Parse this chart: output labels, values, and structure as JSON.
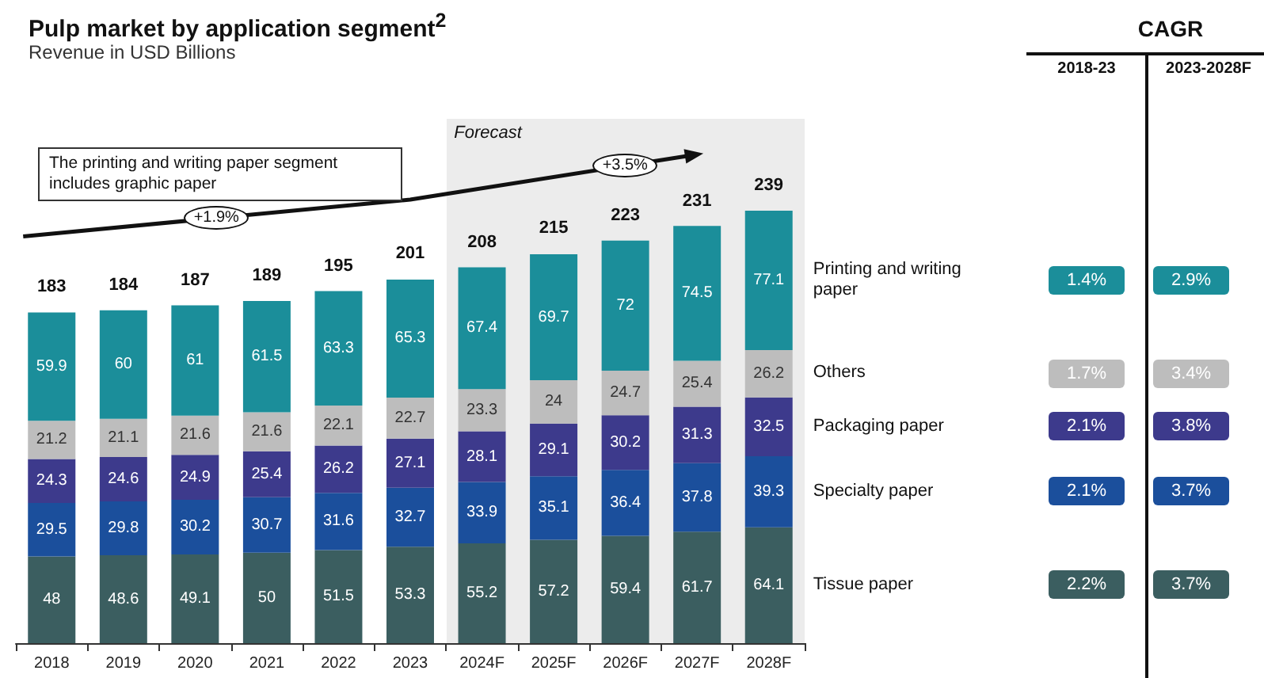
{
  "chart_data": {
    "type": "bar",
    "title": "Pulp market by application segment$^{2}$",
    "subtitle": "Revenue in USD Billions",
    "categories": [
      "2018",
      "2019",
      "2020",
      "2021",
      "2022",
      "2023",
      "2024F",
      "2025F",
      "2026F",
      "2027F",
      "2028F"
    ],
    "stacked": true,
    "data_labels": true,
    "tick_labels": "x",
    "legend": false,
    "ylim": [
      0,
      290
    ],
    "series": [
      {
        "name": "Tissue paper",
        "color": "#3b5e60",
        "values": [
          48,
          48.6,
          49.1,
          50,
          51.5,
          53.3,
          55.2,
          57.2,
          59.4,
          61.7,
          64.1
        ]
      },
      {
        "name": "Specialty paper",
        "color": "#1b4f9c",
        "values": [
          29.5,
          29.8,
          30.2,
          30.7,
          31.6,
          32.7,
          33.9,
          35.1,
          36.4,
          37.8,
          39.3
        ]
      },
      {
        "name": "Packaging paper",
        "color": "#3d3a8c",
        "values": [
          24.3,
          24.6,
          24.9,
          25.4,
          26.2,
          27.1,
          28.1,
          29.1,
          30.2,
          31.3,
          32.5
        ]
      },
      {
        "name": "Others",
        "color": "#bdbdbd",
        "values": [
          21.2,
          21.1,
          21.6,
          21.6,
          22.1,
          22.7,
          23.3,
          24,
          24.7,
          25.4,
          26.2
        ]
      },
      {
        "name": "Printing and writing paper",
        "color": "#1b8e9a",
        "values": [
          59.9,
          60,
          61,
          61.5,
          63.3,
          65.3,
          67.4,
          69.7,
          72,
          74.5,
          77.1
        ]
      }
    ],
    "totals": [
      "183",
      "184",
      "187",
      "189",
      "195",
      "201",
      "208",
      "215",
      "223",
      "231",
      "239"
    ],
    "bands": [
      {
        "axis": "x",
        "from": "2024F",
        "to": "2028F",
        "label": "Forecast",
        "color": "#ececec"
      }
    ],
    "annotations": [
      "The printing and writing paper segment includes graphic paper",
      "+1.9%",
      "+3.5%",
      "CAGR",
      "2018-23",
      "2023-2028F",
      "2.2%",
      "3.7%",
      "2.1%",
      "3.7%",
      "2.1%",
      "3.8%",
      "1.7%",
      "3.4%",
      "1.4%",
      "2.9%"
    ]
  }
}
